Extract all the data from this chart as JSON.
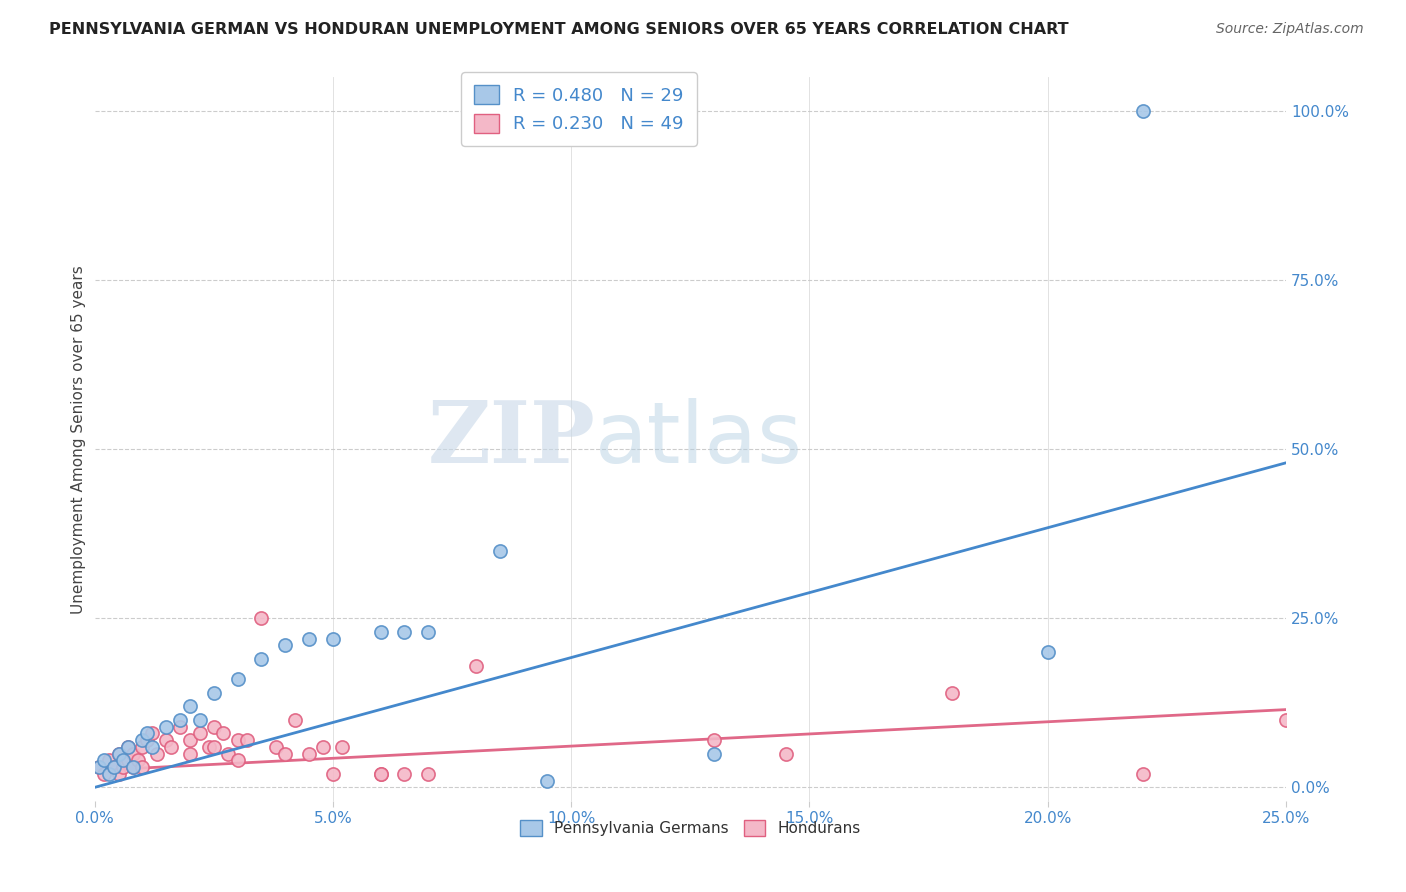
{
  "title": "PENNSYLVANIA GERMAN VS HONDURAN UNEMPLOYMENT AMONG SENIORS OVER 65 YEARS CORRELATION CHART",
  "source": "Source: ZipAtlas.com",
  "ylabel": "Unemployment Among Seniors over 65 years",
  "xlim": [
    0.0,
    0.25
  ],
  "ylim": [
    -0.02,
    1.05
  ],
  "xticks": [
    0.0,
    0.05,
    0.1,
    0.15,
    0.2,
    0.25
  ],
  "yticks_right": [
    0.0,
    0.25,
    0.5,
    0.75,
    1.0
  ],
  "ytick_right_labels": [
    "0.0%",
    "25.0%",
    "50.0%",
    "75.0%",
    "100.0%"
  ],
  "xtick_labels": [
    "0.0%",
    "5.0%",
    "10.0%",
    "15.0%",
    "20.0%",
    "25.0%"
  ],
  "blue_R": 0.48,
  "blue_N": 29,
  "pink_R": 0.23,
  "pink_N": 49,
  "blue_color": "#a8c8e8",
  "pink_color": "#f4b8c8",
  "blue_edge_color": "#5590c8",
  "pink_edge_color": "#e06080",
  "blue_line_color": "#4488cc",
  "pink_line_color": "#e06888",
  "legend_label_blue": "Pennsylvania Germans",
  "legend_label_pink": "Hondurans",
  "watermark_zip": "ZIP",
  "watermark_atlas": "atlas",
  "blue_line_x0": 0.0,
  "blue_line_y0": 0.0,
  "blue_line_x1": 0.25,
  "blue_line_y1": 0.48,
  "pink_line_x0": 0.0,
  "pink_line_y0": 0.025,
  "pink_line_x1": 0.25,
  "pink_line_y1": 0.115,
  "blue_x": [
    0.001,
    0.002,
    0.003,
    0.004,
    0.005,
    0.006,
    0.007,
    0.008,
    0.01,
    0.011,
    0.012,
    0.015,
    0.018,
    0.02,
    0.022,
    0.025,
    0.03,
    0.035,
    0.04,
    0.045,
    0.05,
    0.06,
    0.065,
    0.07,
    0.085,
    0.095,
    0.13,
    0.2,
    0.22
  ],
  "blue_y": [
    0.03,
    0.04,
    0.02,
    0.03,
    0.05,
    0.04,
    0.06,
    0.03,
    0.07,
    0.08,
    0.06,
    0.09,
    0.1,
    0.12,
    0.1,
    0.14,
    0.16,
    0.19,
    0.21,
    0.22,
    0.22,
    0.23,
    0.23,
    0.23,
    0.35,
    0.01,
    0.05,
    0.2,
    1.0
  ],
  "pink_x": [
    0.001,
    0.002,
    0.003,
    0.004,
    0.005,
    0.005,
    0.006,
    0.007,
    0.007,
    0.008,
    0.008,
    0.009,
    0.01,
    0.01,
    0.011,
    0.012,
    0.013,
    0.015,
    0.016,
    0.018,
    0.02,
    0.02,
    0.022,
    0.024,
    0.025,
    0.025,
    0.027,
    0.028,
    0.03,
    0.03,
    0.032,
    0.035,
    0.038,
    0.04,
    0.042,
    0.045,
    0.048,
    0.05,
    0.052,
    0.06,
    0.06,
    0.065,
    0.07,
    0.08,
    0.13,
    0.145,
    0.18,
    0.22,
    0.25
  ],
  "pink_y": [
    0.03,
    0.02,
    0.04,
    0.03,
    0.05,
    0.02,
    0.03,
    0.04,
    0.06,
    0.03,
    0.05,
    0.04,
    0.06,
    0.03,
    0.07,
    0.08,
    0.05,
    0.07,
    0.06,
    0.09,
    0.07,
    0.05,
    0.08,
    0.06,
    0.09,
    0.06,
    0.08,
    0.05,
    0.04,
    0.07,
    0.07,
    0.25,
    0.06,
    0.05,
    0.1,
    0.05,
    0.06,
    0.02,
    0.06,
    0.02,
    0.02,
    0.02,
    0.02,
    0.18,
    0.07,
    0.05,
    0.14,
    0.02,
    0.1
  ]
}
